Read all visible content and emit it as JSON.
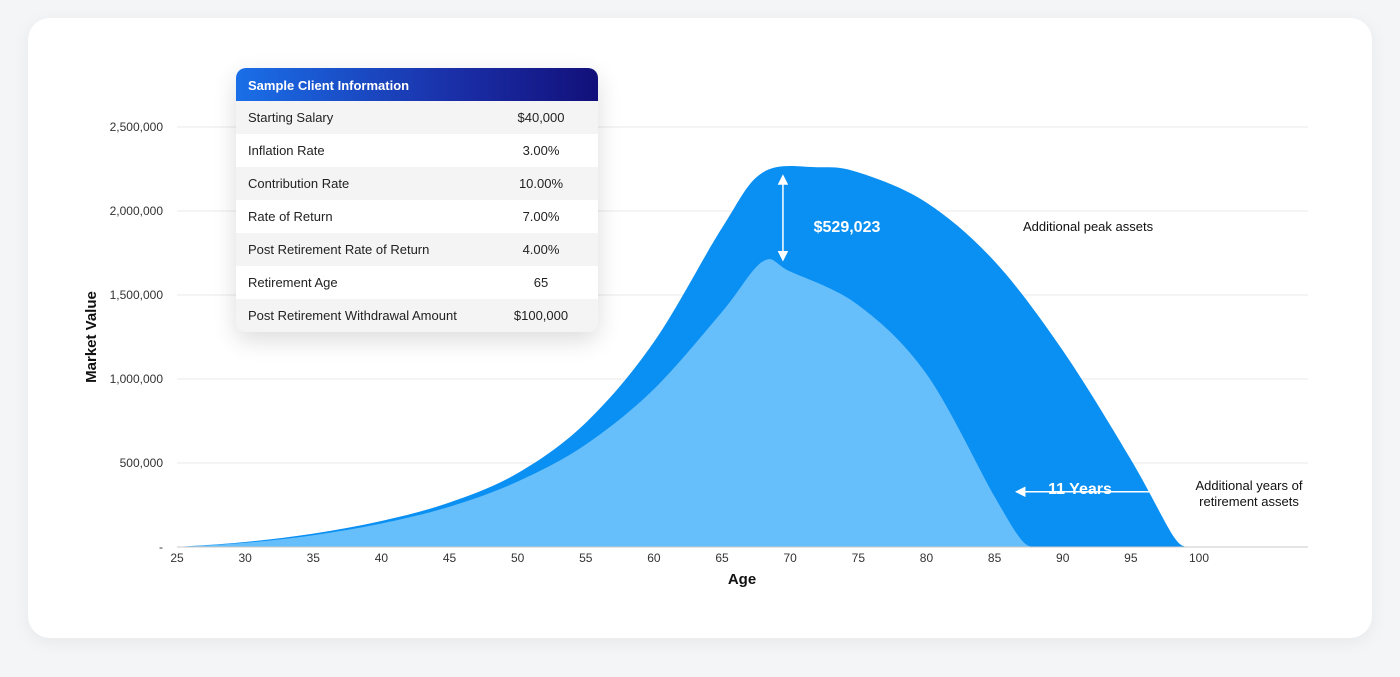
{
  "card": {
    "title": "Sample Client Information",
    "rows": [
      {
        "label": "Starting Salary",
        "value": "$40,000"
      },
      {
        "label": "Inflation Rate",
        "value": "3.00%"
      },
      {
        "label": "Contribution Rate",
        "value": "10.00%"
      },
      {
        "label": "Rate of Return",
        "value": "7.00%"
      },
      {
        "label": "Post Retirement Rate of Return",
        "value": "4.00%"
      },
      {
        "label": "Retirement Age",
        "value": "65"
      },
      {
        "label": "Post Retirement Withdrawal Amount",
        "value": "$100,000"
      }
    ]
  },
  "chart_data": {
    "type": "area",
    "xlabel": "Age",
    "ylabel": "Market Value",
    "xlim": [
      25,
      108
    ],
    "ylim": [
      0,
      2500000
    ],
    "x_ticks": [
      "25",
      "30",
      "35",
      "40",
      "45",
      "50",
      "55",
      "60",
      "65",
      "70",
      "75",
      "80",
      "85",
      "90",
      "95",
      "100"
    ],
    "y_ticks": [
      "-",
      "500,000",
      "1,000,000",
      "1,500,000",
      "2,000,000",
      "2,500,000"
    ],
    "grid": true,
    "colors": {
      "outer": "#0a8ff2",
      "inner": "#66bffa",
      "grid": "#e8e8e8",
      "axis": "#c8c8c8"
    },
    "series": [
      {
        "x": [
          25,
          30,
          35,
          40,
          45,
          50,
          55,
          60,
          65,
          68,
          72,
          75,
          80,
          85,
          90,
          95,
          98,
          99
        ],
        "values": [
          0,
          30000,
          80000,
          155000,
          265000,
          440000,
          740000,
          1220000,
          1900000,
          2230000,
          2260000,
          2230000,
          2050000,
          1700000,
          1170000,
          520000,
          80000,
          0
        ]
      },
      {
        "x": [
          25,
          30,
          35,
          40,
          45,
          50,
          55,
          60,
          65,
          68,
          70,
          75,
          80,
          85,
          87,
          88
        ],
        "values": [
          0,
          25000,
          70000,
          140000,
          240000,
          390000,
          610000,
          940000,
          1400000,
          1700000,
          1640000,
          1440000,
          1030000,
          300000,
          40000,
          0
        ]
      }
    ],
    "annotations": [
      {
        "text": "$529,023"
      },
      {
        "text": "Additional peak assets"
      },
      {
        "text": "11 Years"
      },
      {
        "text": "Additional years of"
      },
      {
        "text": "retirement assets"
      }
    ],
    "peak_gap": {
      "x": 68,
      "from": 1700000,
      "to": 2230000
    },
    "years_gap": {
      "y": 180000,
      "from": 86.5,
      "to": 98
    }
  }
}
